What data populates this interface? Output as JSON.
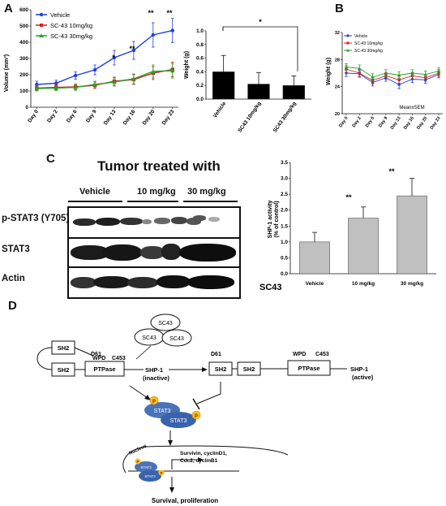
{
  "panels": {
    "a": "A",
    "b": "B",
    "c": "C",
    "d": "D"
  },
  "panel_a_line": {
    "ylabel": "Volume (mm³)",
    "legend": [
      "Vehicle",
      "SC-43 10mg/kg",
      "SC-43 30mg/kg"
    ],
    "sig_marks": [
      "*",
      "**",
      "**",
      "**"
    ]
  },
  "panel_a_bar": {
    "ylabel": "Weight (g)",
    "sig_mark": "*"
  },
  "panel_b": {
    "ylabel": "Weight (g)",
    "legend": [
      "Vehicle",
      "SC-43 10mg/kg",
      "SC-43 30mg/kg"
    ],
    "annotation": "Mean±SEM"
  },
  "panel_c": {
    "title": "Tumor treated with",
    "groups": [
      "Vehicle",
      "10 mg/kg",
      "30 mg/kg"
    ],
    "rows": [
      "p-STAT3 (Y705)",
      "STAT3",
      "Actin"
    ],
    "bar_ylabel": "SHP-1 activity\n(% of control)",
    "bar_xlabel_left": "SC43",
    "sig_marks": [
      "**",
      "**"
    ]
  },
  "panel_d": {
    "sc43": "SC43",
    "sh2": "SH2",
    "d61": "D61",
    "wpd": "WPD",
    "c453": "C453",
    "ptpase": "PTPase",
    "shp1_inactive": "SHP-1",
    "inactive": "(inactive)",
    "shp1_active": "SHP-1",
    "active": "(active)",
    "stat3": "STAT3",
    "p": "P",
    "nucleus": "Nucleus",
    "genes": "Survivin, cyclinD1,\nCdc2, cyclinB1",
    "outcome": "Survival, proliferation"
  },
  "chart_data": [
    {
      "type": "line",
      "x": [
        "Day 0",
        "Day 2",
        "Day 6",
        "Day 9",
        "Day 13",
        "Day 16",
        "Day 20",
        "Day 23"
      ],
      "ylim": [
        0,
        600
      ],
      "yticks": [
        0,
        100,
        200,
        300,
        400,
        500,
        600
      ],
      "series": [
        {
          "name": "Vehicle",
          "color": "#1f3fe0",
          "values": [
            140,
            148,
            195,
            230,
            305,
            350,
            445,
            472
          ],
          "err": [
            20,
            18,
            22,
            30,
            45,
            55,
            75,
            75
          ]
        },
        {
          "name": "SC-43 10mg/kg",
          "color": "#d42020",
          "values": [
            118,
            122,
            125,
            135,
            160,
            170,
            210,
            232
          ],
          "err": [
            15,
            15,
            18,
            20,
            25,
            30,
            40,
            45
          ]
        },
        {
          "name": "SC-43 30mg/kg",
          "color": "#2aa02a",
          "values": [
            115,
            118,
            122,
            140,
            155,
            175,
            220,
            225
          ],
          "err": [
            15,
            15,
            18,
            20,
            25,
            30,
            40,
            45
          ]
        }
      ]
    },
    {
      "type": "bar",
      "categories": [
        "Vehicle",
        "SC43 10mg/kg",
        "SC43 30mg/kg"
      ],
      "values": [
        0.4,
        0.22,
        0.2
      ],
      "err": [
        0.24,
        0.17,
        0.14
      ],
      "ylim": [
        0,
        1.0
      ],
      "yticks": [
        0.0,
        0.2,
        0.4,
        0.6,
        0.8,
        1.0
      ]
    },
    {
      "type": "line",
      "x": [
        "Day 0",
        "Day 2",
        "Day 6",
        "Day 9",
        "Day 13",
        "Day 16",
        "Day 20",
        "Day 23"
      ],
      "ylim": [
        20,
        32
      ],
      "yticks": [
        20,
        24,
        28,
        32
      ],
      "series": [
        {
          "name": "Vehicle",
          "color": "#1f3fe0",
          "values": [
            26.0,
            25.9,
            24.6,
            25.3,
            24.3,
            25.1,
            25.0,
            25.8
          ],
          "err": [
            0.5,
            0.5,
            0.5,
            0.5,
            0.6,
            0.5,
            0.5,
            0.5
          ]
        },
        {
          "name": "SC-43 10mg/kg",
          "color": "#d42020",
          "values": [
            26.6,
            26.0,
            24.9,
            25.6,
            25.0,
            25.6,
            25.3,
            26.0
          ],
          "err": [
            0.5,
            0.5,
            0.5,
            0.5,
            0.5,
            0.5,
            0.5,
            0.5
          ]
        },
        {
          "name": "SC-43 30mg/kg",
          "color": "#2aa02a",
          "values": [
            26.9,
            26.7,
            25.4,
            26.0,
            25.7,
            26.0,
            25.8,
            26.3
          ],
          "err": [
            0.5,
            0.5,
            0.5,
            0.5,
            0.5,
            0.5,
            0.5,
            0.5
          ]
        }
      ]
    },
    {
      "type": "bar",
      "categories": [
        "Vehicle",
        "10 mg/kg",
        "30 mg/kg"
      ],
      "values": [
        1.0,
        1.75,
        2.45
      ],
      "err": [
        0.3,
        0.35,
        0.55
      ],
      "ylim": [
        0,
        3.5
      ],
      "yticks": [
        0.0,
        0.5,
        1.0,
        1.5,
        2.0,
        2.5,
        3.0,
        3.5
      ]
    }
  ]
}
